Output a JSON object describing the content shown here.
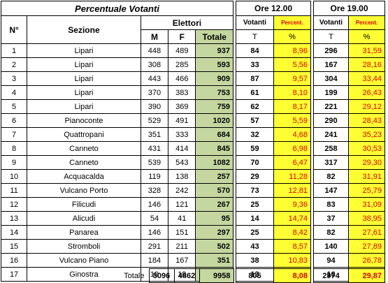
{
  "main": {
    "title": "Percentuale Votanti",
    "col_num": "N°",
    "col_sezione": "Sezione",
    "col_elettori": "Elettori",
    "col_m": "M",
    "col_f": "F",
    "col_totale": "Totale"
  },
  "ore12": {
    "label": "Ore 12.00",
    "votanti": "Votanti",
    "percent": "Percent.",
    "unit_v": "T",
    "unit_p": "%"
  },
  "ore19": {
    "label": "Ore 19.00",
    "votanti": "Votanti",
    "percent": "Percent.",
    "unit_v": "T",
    "unit_p": "%"
  },
  "rows": [
    [
      "1",
      "Lipari",
      "448",
      "489",
      "937",
      "84",
      "8,96",
      "296",
      "31,59"
    ],
    [
      "2",
      "Lipari",
      "308",
      "285",
      "593",
      "33",
      "5,56",
      "167",
      "28,16"
    ],
    [
      "3",
      "Lipari",
      "443",
      "466",
      "909",
      "87",
      "9,57",
      "304",
      "33,44"
    ],
    [
      "4",
      "Lipari",
      "370",
      "383",
      "753",
      "61",
      "8,10",
      "199",
      "26,43"
    ],
    [
      "5",
      "Lipari",
      "390",
      "369",
      "759",
      "62",
      "8,17",
      "221",
      "29,12"
    ],
    [
      "6",
      "Pianoconte",
      "529",
      "491",
      "1020",
      "57",
      "5,59",
      "290",
      "28,43"
    ],
    [
      "7",
      "Quattropani",
      "351",
      "333",
      "684",
      "32",
      "4,68",
      "241",
      "35,23"
    ],
    [
      "8",
      "Canneto",
      "431",
      "414",
      "845",
      "59",
      "6,98",
      "258",
      "30,53"
    ],
    [
      "9",
      "Canneto",
      "539",
      "543",
      "1082",
      "70",
      "6,47",
      "317",
      "29,30"
    ],
    [
      "10",
      "Acquacalda",
      "119",
      "138",
      "257",
      "29",
      "11,28",
      "82",
      "31,91"
    ],
    [
      "11",
      "Vulcano Porto",
      "328",
      "242",
      "570",
      "73",
      "12,81",
      "147",
      "25,79"
    ],
    [
      "12",
      "Filicudi",
      "146",
      "121",
      "267",
      "25",
      "9,36",
      "83",
      "31,09"
    ],
    [
      "13",
      "Alicudi",
      "54",
      "41",
      "95",
      "14",
      "14,74",
      "37",
      "38,95"
    ],
    [
      "14",
      "Panarea",
      "146",
      "151",
      "297",
      "25",
      "8,42",
      "82",
      "27,61"
    ],
    [
      "15",
      "Stromboli",
      "291",
      "211",
      "502",
      "43",
      "8,57",
      "140",
      "27,89"
    ],
    [
      "16",
      "Vulcano Piano",
      "184",
      "167",
      "351",
      "38",
      "10,83",
      "94",
      "26,78"
    ],
    [
      "17",
      "Ginostra",
      "19",
      "18",
      "37",
      "13",
      "35,14",
      "16",
      "43,24"
    ]
  ],
  "totals": {
    "label": "Totale",
    "m": "5096",
    "f": "4862",
    "tot": "9958",
    "v12": "805",
    "p12": "8,08",
    "v19": "2974",
    "p19": "29,87"
  }
}
